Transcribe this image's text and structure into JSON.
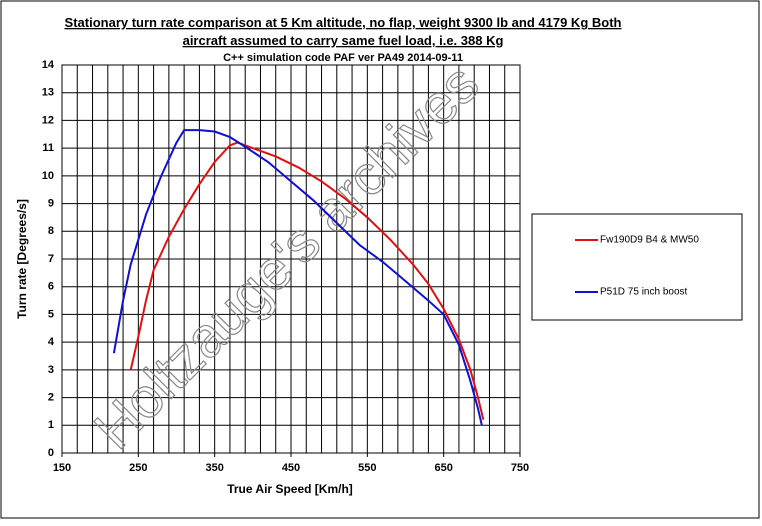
{
  "chart_data": {
    "type": "line",
    "title": [
      "Stationary turn rate comparison at 5 Km altitude, no flap, weight 9300 lb and 4179 Kg Both",
      "aircraft assumed to carry same fuel load, i.e. 388 Kg"
    ],
    "subtitle": "C++ simulation code PAF ver PA49 2014-09-11",
    "x_label": "True Air Speed [Km/h]",
    "y_label": "Turn rate [Degrees/s]",
    "watermark": "Holtzauge's archives",
    "xlim": [
      150,
      750
    ],
    "ylim": [
      0,
      14
    ],
    "xticks": [
      150,
      250,
      350,
      450,
      550,
      650,
      750
    ],
    "yticks": [
      0,
      1,
      2,
      3,
      4,
      5,
      6,
      7,
      8,
      9,
      10,
      11,
      12,
      13,
      14
    ],
    "x_minor_grid_step": 20,
    "grid": true,
    "legend": "right",
    "series": [
      {
        "name": "Fw190D9 B4 & MW50",
        "color": "#e01010",
        "x": [
          240,
          250,
          260,
          270,
          290,
          310,
          330,
          350,
          370,
          380,
          400,
          430,
          460,
          490,
          520,
          550,
          580,
          610,
          630,
          650,
          670,
          685,
          695,
          702
        ],
        "values": [
          3.0,
          4.2,
          5.5,
          6.6,
          7.8,
          8.8,
          9.7,
          10.5,
          11.1,
          11.2,
          11.0,
          10.7,
          10.3,
          9.8,
          9.2,
          8.5,
          7.7,
          6.8,
          6.1,
          5.2,
          4.1,
          3.0,
          2.0,
          1.2
        ]
      },
      {
        "name": "P51D 75 inch boost",
        "color": "#1010d0",
        "x": [
          218,
          230,
          240,
          260,
          280,
          300,
          310,
          330,
          350,
          370,
          390,
          420,
          450,
          480,
          510,
          540,
          570,
          600,
          630,
          650,
          670,
          685,
          695,
          700
        ],
        "values": [
          3.6,
          5.5,
          6.8,
          8.6,
          10.0,
          11.2,
          11.65,
          11.65,
          11.6,
          11.4,
          11.05,
          10.5,
          9.8,
          9.1,
          8.3,
          7.5,
          6.9,
          6.2,
          5.5,
          5.0,
          3.9,
          2.6,
          1.6,
          1.0
        ]
      }
    ]
  }
}
